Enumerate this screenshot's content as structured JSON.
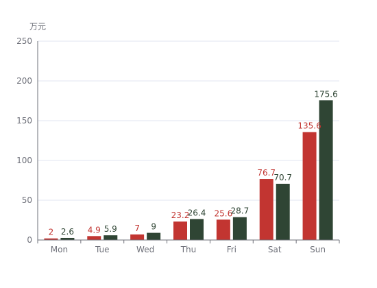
{
  "chart_data": {
    "type": "bar",
    "categories": [
      "Mon",
      "Tue",
      "Wed",
      "Thu",
      "Fri",
      "Sat",
      "Sun"
    ],
    "series": [
      {
        "values": [
          2,
          4.9,
          7,
          23.2,
          25.6,
          76.7,
          135.6
        ],
        "color": "#c23531"
      },
      {
        "values": [
          2.6,
          5.9,
          9,
          26.4,
          28.7,
          70.7,
          175.6
        ],
        "color": "#2f4534"
      }
    ],
    "y_unit": "万元",
    "ylim": [
      0,
      250
    ],
    "y_ticks": [
      0,
      50,
      100,
      150,
      200,
      250
    ],
    "grid": true,
    "data_labels": true
  }
}
